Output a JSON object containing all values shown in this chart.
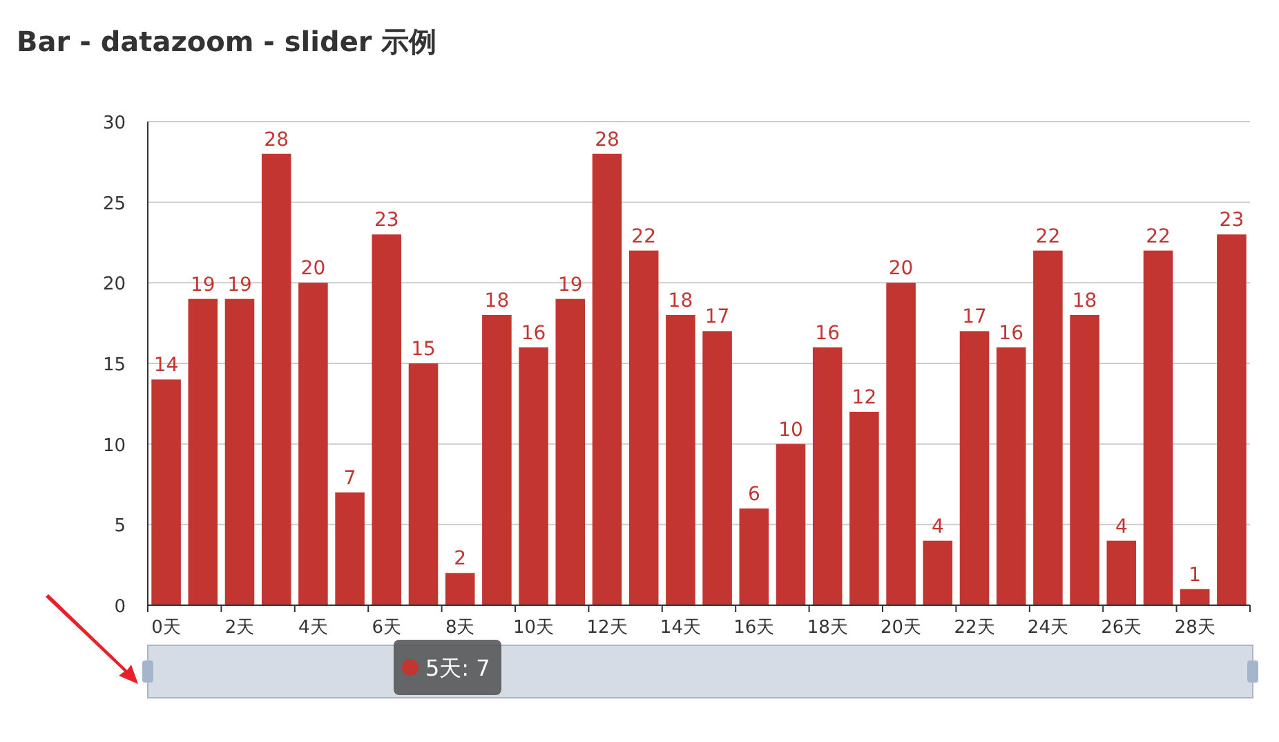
{
  "chart_data": {
    "type": "bar",
    "title": "Bar - datazoom - slider 示例",
    "categories": [
      "0天",
      null,
      "2天",
      null,
      "4天",
      null,
      "6天",
      null,
      "8天",
      null,
      "10天",
      null,
      "12天",
      null,
      "14天",
      null,
      "16天",
      null,
      "18天",
      null,
      "20天",
      null,
      "22天",
      null,
      "24天",
      null,
      "26天",
      null,
      "28天",
      null
    ],
    "values": [
      14,
      19,
      19,
      28,
      20,
      7,
      23,
      15,
      2,
      18,
      16,
      19,
      28,
      22,
      18,
      17,
      6,
      10,
      16,
      12,
      20,
      4,
      17,
      16,
      22,
      18,
      4,
      22,
      1,
      23
    ],
    "color": "#c23531",
    "ylim": [
      0,
      30
    ],
    "yticks": [
      0,
      5,
      10,
      15,
      20,
      25,
      30
    ],
    "grid": "y",
    "data_labels": true,
    "annotations": [
      "5天: 7"
    ]
  }
}
